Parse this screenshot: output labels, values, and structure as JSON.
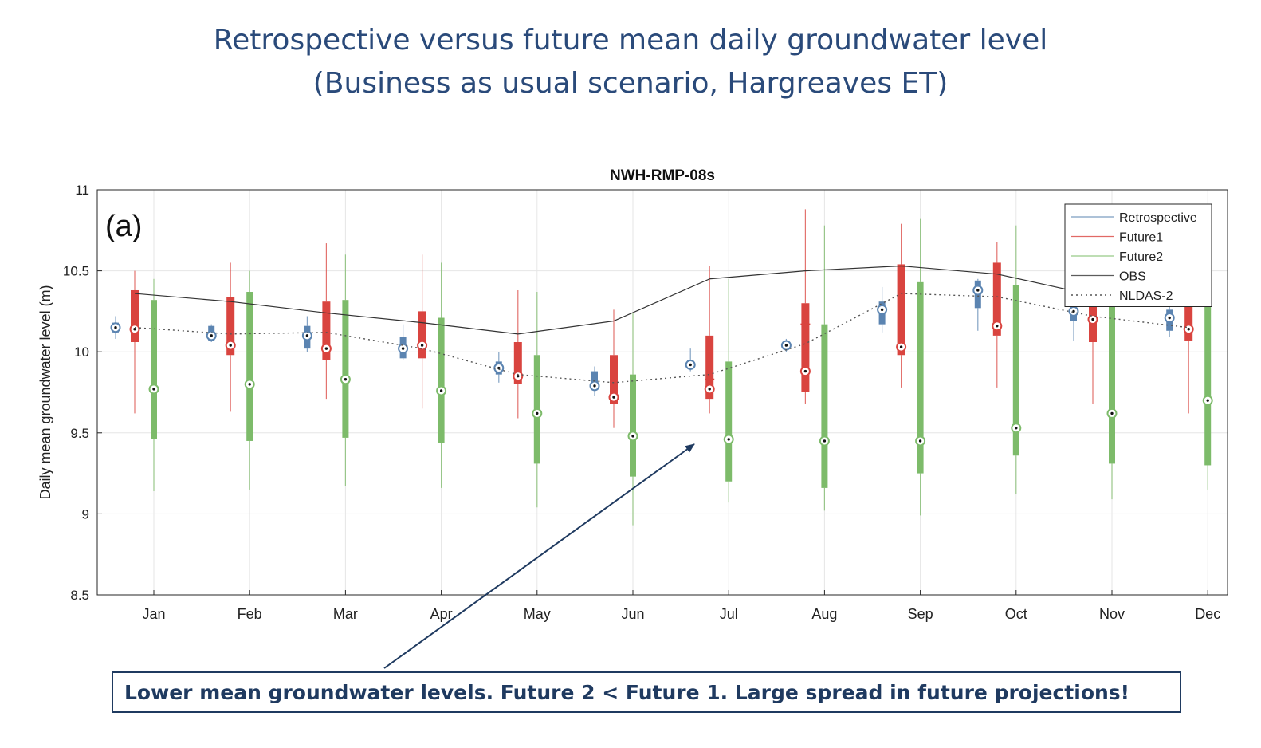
{
  "slide": {
    "title_line1": "Retrospective versus future mean daily groundwater level",
    "title_line2": "(Business as usual scenario, Hargreaves ET)",
    "callout": "Lower mean groundwater levels. Future 2 <  Future 1. Large spread in future projections!"
  },
  "chart_data": {
    "type": "box",
    "title": "NWH-RMP-08s",
    "panel_label": "(a)",
    "ylabel": "Daily mean groundwater level (m)",
    "xlabel": "",
    "ylim": [
      8.5,
      11
    ],
    "yticks": [
      8.5,
      9,
      9.5,
      10,
      10.5,
      11
    ],
    "grid": true,
    "legend_position": "top-right",
    "categories": [
      "Jan",
      "Feb",
      "Mar",
      "Apr",
      "May",
      "Jun",
      "Jul",
      "Aug",
      "Sep",
      "Oct",
      "Nov",
      "Dec"
    ],
    "series": [
      {
        "name": "Retrospective",
        "color": "#5b84b1",
        "boxes": [
          {
            "wlo": 10.08,
            "q1": 10.12,
            "med": 10.15,
            "q3": 10.18,
            "whi": 10.22
          },
          {
            "wlo": 10.06,
            "q1": 10.07,
            "med": 10.1,
            "q3": 10.16,
            "whi": 10.17
          },
          {
            "wlo": 10.0,
            "q1": 10.02,
            "med": 10.1,
            "q3": 10.16,
            "whi": 10.22
          },
          {
            "wlo": 9.95,
            "q1": 9.96,
            "med": 10.02,
            "q3": 10.09,
            "whi": 10.17
          },
          {
            "wlo": 9.81,
            "q1": 9.86,
            "med": 9.9,
            "q3": 9.94,
            "whi": 10.0
          },
          {
            "wlo": 9.73,
            "q1": 9.77,
            "med": 9.79,
            "q3": 9.88,
            "whi": 9.91
          },
          {
            "wlo": 9.88,
            "q1": 9.9,
            "med": 9.92,
            "q3": 9.95,
            "whi": 10.02
          },
          {
            "wlo": 10.0,
            "q1": 10.02,
            "med": 10.04,
            "q3": 10.06,
            "whi": 10.08
          },
          {
            "wlo": 10.12,
            "q1": 10.17,
            "med": 10.26,
            "q3": 10.31,
            "whi": 10.4
          },
          {
            "wlo": 10.13,
            "q1": 10.27,
            "med": 10.38,
            "q3": 10.44,
            "whi": 10.45
          },
          {
            "wlo": 10.07,
            "q1": 10.19,
            "med": 10.25,
            "q3": 10.29,
            "whi": 10.35
          },
          {
            "wlo": 10.09,
            "q1": 10.13,
            "med": 10.21,
            "q3": 10.26,
            "whi": 10.3
          }
        ]
      },
      {
        "name": "Future1",
        "color": "#d9443f",
        "boxes": [
          {
            "wlo": 9.62,
            "q1": 10.06,
            "med": 10.14,
            "q3": 10.38,
            "whi": 10.5
          },
          {
            "wlo": 9.63,
            "q1": 9.98,
            "med": 10.04,
            "q3": 10.34,
            "whi": 10.55
          },
          {
            "wlo": 9.71,
            "q1": 9.95,
            "med": 10.02,
            "q3": 10.31,
            "whi": 10.67
          },
          {
            "wlo": 9.65,
            "q1": 9.96,
            "med": 10.04,
            "q3": 10.25,
            "whi": 10.6
          },
          {
            "wlo": 9.59,
            "q1": 9.8,
            "med": 9.85,
            "q3": 10.06,
            "whi": 10.38
          },
          {
            "wlo": 9.53,
            "q1": 9.68,
            "med": 9.72,
            "q3": 9.98,
            "whi": 10.26
          },
          {
            "wlo": 9.62,
            "q1": 9.71,
            "med": 9.77,
            "q3": 10.1,
            "whi": 10.53
          },
          {
            "wlo": 9.68,
            "q1": 9.75,
            "med": 9.88,
            "q3": 10.3,
            "whi": 10.88
          },
          {
            "wlo": 9.78,
            "q1": 9.98,
            "med": 10.03,
            "q3": 10.54,
            "whi": 10.79
          },
          {
            "wlo": 9.78,
            "q1": 10.1,
            "med": 10.16,
            "q3": 10.55,
            "whi": 10.68
          },
          {
            "wlo": 9.68,
            "q1": 10.06,
            "med": 10.2,
            "q3": 10.4,
            "whi": 10.55
          },
          {
            "wlo": 9.62,
            "q1": 10.07,
            "med": 10.14,
            "q3": 10.32,
            "whi": 10.42
          }
        ],
        "outliers": [
          {
            "month": "Jul",
            "value": 9.83
          },
          {
            "month": "Aug",
            "value": 10.17
          }
        ]
      },
      {
        "name": "Future2",
        "color": "#7dbb6a",
        "boxes": [
          {
            "wlo": 9.14,
            "q1": 9.46,
            "med": 9.77,
            "q3": 10.32,
            "whi": 10.45
          },
          {
            "wlo": 9.15,
            "q1": 9.45,
            "med": 9.8,
            "q3": 10.37,
            "whi": 10.5
          },
          {
            "wlo": 9.17,
            "q1": 9.47,
            "med": 9.83,
            "q3": 10.32,
            "whi": 10.6
          },
          {
            "wlo": 9.16,
            "q1": 9.44,
            "med": 9.76,
            "q3": 10.21,
            "whi": 10.55
          },
          {
            "wlo": 9.04,
            "q1": 9.31,
            "med": 9.62,
            "q3": 9.98,
            "whi": 10.37
          },
          {
            "wlo": 8.93,
            "q1": 9.23,
            "med": 9.48,
            "q3": 9.86,
            "whi": 10.24
          },
          {
            "wlo": 9.07,
            "q1": 9.2,
            "med": 9.46,
            "q3": 9.94,
            "whi": 10.45
          },
          {
            "wlo": 9.02,
            "q1": 9.16,
            "med": 9.45,
            "q3": 10.17,
            "whi": 10.78
          },
          {
            "wlo": 8.99,
            "q1": 9.25,
            "med": 9.45,
            "q3": 10.43,
            "whi": 10.82
          },
          {
            "wlo": 9.12,
            "q1": 9.36,
            "med": 9.53,
            "q3": 10.41,
            "whi": 10.78
          },
          {
            "wlo": 9.09,
            "q1": 9.31,
            "med": 9.62,
            "q3": 10.3,
            "whi": 10.6
          },
          {
            "wlo": 9.15,
            "q1": 9.3,
            "med": 9.7,
            "q3": 10.29,
            "whi": 10.5
          }
        ]
      }
    ],
    "lines": [
      {
        "name": "OBS",
        "color": "#333333",
        "style": "solid",
        "values": [
          10.36,
          10.31,
          10.24,
          10.18,
          10.11,
          10.19,
          10.45,
          10.5,
          10.53,
          10.48,
          10.35,
          10.35
        ]
      },
      {
        "name": "NLDAS-2",
        "color": "#555555",
        "style": "dotted",
        "values": [
          10.15,
          10.11,
          10.12,
          10.02,
          9.86,
          9.81,
          9.86,
          10.05,
          10.36,
          10.34,
          10.22,
          10.15
        ]
      }
    ]
  }
}
